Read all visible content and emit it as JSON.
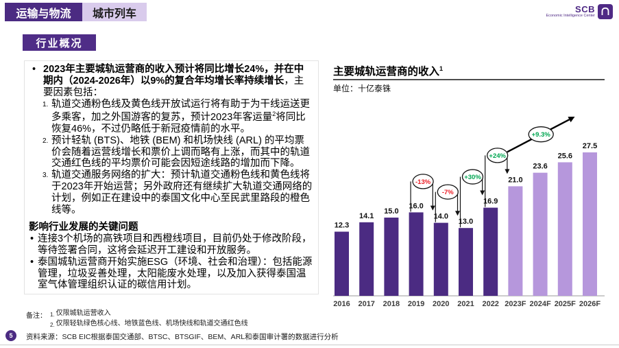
{
  "header": {
    "tab_primary": "运输与物流",
    "tab_secondary": "城市列车",
    "section_badge": "行业概况",
    "logo": {
      "brand": "SCB",
      "subtitle": "Economic Intelligence Center"
    }
  },
  "left_panel": {
    "intro_bold": "2023年主要城轨运营商的收入预计将同比增长24%，并在中期内（2024-2026年）以9%的复合年均增长率持续增长",
    "intro_regular": "，主要因素包括：",
    "items": [
      {
        "num": "1.",
        "text_pre": "轨道交通粉色线及黄色线开放试运行将有助于为干线运送更多乘客，加之外国游客的复苏，预计2023年客运量",
        "superscript": "2",
        "text_post": "将同比恢复46%，不过仍略低于新冠疫情前的水平。"
      },
      {
        "num": "2.",
        "text": "预计轻轨 (BTS)、地铁 (BEM) 和机场快线 (ARL) 的平均票价会随着运营线增长和票价上调而略有上涨，而其中的轨道交通红色线的平均票价可能会因短途线路的增加而下降。"
      },
      {
        "num": "3.",
        "text": "轨道交通服务网络的扩大：预计轨道交通粉色线和黄色线将于2023年开始运营；另外政府还有继续扩大轨道交通网络的计划，例如正在建设中的泰国文化中心至民武里路段的橙色线等。"
      }
    ],
    "key_issues_heading": "影响行业发展的关键问题",
    "key_issues": [
      "连接3个机场的高铁项目和西橙线项目，目前仍处于修改阶段，等待签署合同，这将会延迟开工建设和开放服务。",
      "泰国城轨运营商开始实施ESG（环境、社会和治理）：包括能源管理，垃圾妥善处理，太阳能废水处理，以及加入获得泰国温室气体管理组织认证的碳信用计划。"
    ]
  },
  "chart_data": {
    "type": "bar",
    "title": "主要城轨运营商的收入",
    "title_superscript": "1",
    "unit_label": "单位：十亿泰铢",
    "categories": [
      "2016",
      "2017",
      "2018",
      "2019",
      "2020",
      "2021",
      "2022",
      "2023F",
      "2024F",
      "2025F",
      "2026F"
    ],
    "values": [
      12.3,
      14.1,
      15.0,
      16.0,
      14.0,
      13.0,
      16.9,
      21.0,
      23.6,
      25.6,
      27.5
    ],
    "forecast_start_index": 7,
    "bar_color_actual": "#4B2B82",
    "bar_color_forecast": "#B697DC",
    "ylim": [
      0,
      30
    ],
    "grid": false,
    "legend": "none",
    "annotations": [
      {
        "type": "step",
        "label": "-13%",
        "color": "#EC1C24",
        "from_index": 3,
        "to_index": 4
      },
      {
        "type": "step",
        "label": "-7%",
        "color": "#EC1C24",
        "from_index": 4,
        "to_index": 5
      },
      {
        "type": "step",
        "label": "+30%",
        "color": "#00A651",
        "from_index": 5,
        "to_index": 6
      },
      {
        "type": "step",
        "label": "+24%",
        "color": "#00A651",
        "from_index": 6,
        "to_index": 7
      },
      {
        "type": "trend",
        "label": "+9.3%",
        "color": "#00A651",
        "from_index": 7,
        "to_index": 10
      }
    ]
  },
  "footer": {
    "notes_label": "备注：",
    "notes": [
      {
        "num": "1.",
        "text": "仅限城轨运营收入"
      },
      {
        "num": "2.",
        "text": "仅限轻轨绿色核心线、地铁蓝色线、机场快线和轨道交通红色线"
      }
    ],
    "source": "资料来源：SCB EIC根据泰国交通部、BTSC、BTSGIF、BEM、ARL和泰国审计署的数据进行分析",
    "page_number": "5"
  }
}
